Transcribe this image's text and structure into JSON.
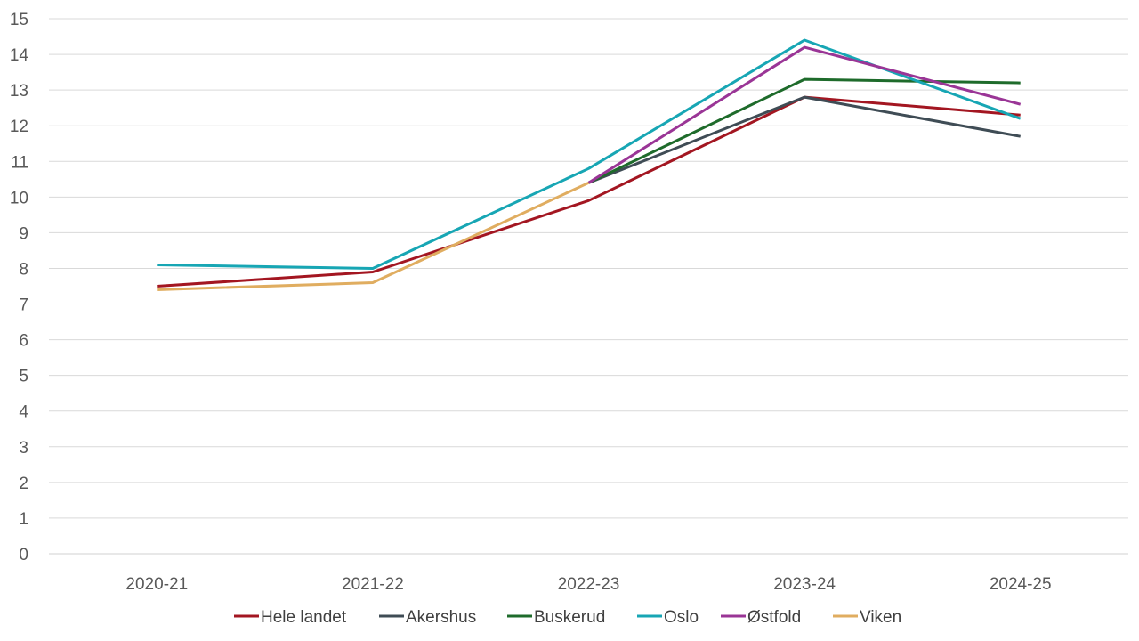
{
  "chart_data": {
    "type": "line",
    "title": "",
    "xlabel": "",
    "ylabel": "",
    "ylim": [
      0,
      15
    ],
    "y_ticks": [
      0,
      1,
      2,
      3,
      4,
      5,
      6,
      7,
      8,
      9,
      10,
      11,
      12,
      13,
      14,
      15
    ],
    "grid": "horizontal",
    "legend_position": "bottom",
    "categories": [
      "2020-21",
      "2021-22",
      "2022-23",
      "2023-24",
      "2024-25"
    ],
    "series": [
      {
        "name": "Hele landet",
        "color": "#a31621",
        "values": [
          7.5,
          7.9,
          9.9,
          12.8,
          12.3
        ]
      },
      {
        "name": "Akershus",
        "color": "#3f4c55",
        "values": [
          null,
          null,
          10.4,
          12.8,
          11.7
        ]
      },
      {
        "name": "Buskerud",
        "color": "#1e6b2b",
        "values": [
          null,
          null,
          10.4,
          13.3,
          13.2
        ]
      },
      {
        "name": "Oslo",
        "color": "#17a6b4",
        "values": [
          8.1,
          8.0,
          10.8,
          14.4,
          12.2
        ]
      },
      {
        "name": "Østfold",
        "color": "#9a3596",
        "values": [
          null,
          null,
          10.4,
          14.2,
          12.6
        ]
      },
      {
        "name": "Viken",
        "color": "#e0ad60",
        "values": [
          7.4,
          7.6,
          10.4,
          null,
          null
        ]
      }
    ]
  }
}
